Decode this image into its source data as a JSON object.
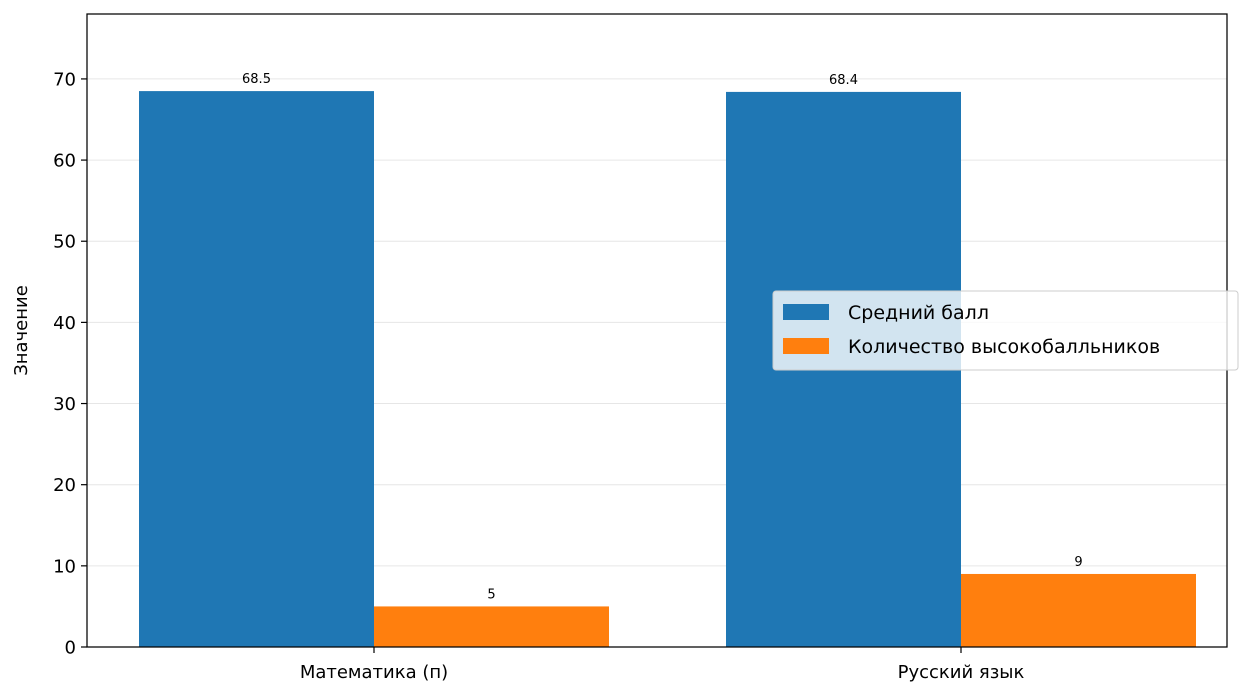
{
  "chart_data": {
    "type": "bar",
    "categories": [
      "Математика (п)",
      "Русский язык"
    ],
    "series": [
      {
        "name": "Средний балл",
        "values": [
          68.5,
          68.4
        ],
        "color": "#1f77b4"
      },
      {
        "name": "Количество высокобалльников",
        "values": [
          5,
          9
        ],
        "color": "#ff7f0e"
      }
    ],
    "value_labels": [
      [
        "68.5",
        "68.4"
      ],
      [
        "5",
        "9"
      ]
    ],
    "title": "",
    "xlabel": "",
    "ylabel": "Значение",
    "ylim": [
      0,
      78
    ],
    "yticks": [
      0,
      10,
      20,
      30,
      40,
      50,
      60,
      70
    ],
    "grid": "horizontal",
    "legend_position": "center-right"
  }
}
